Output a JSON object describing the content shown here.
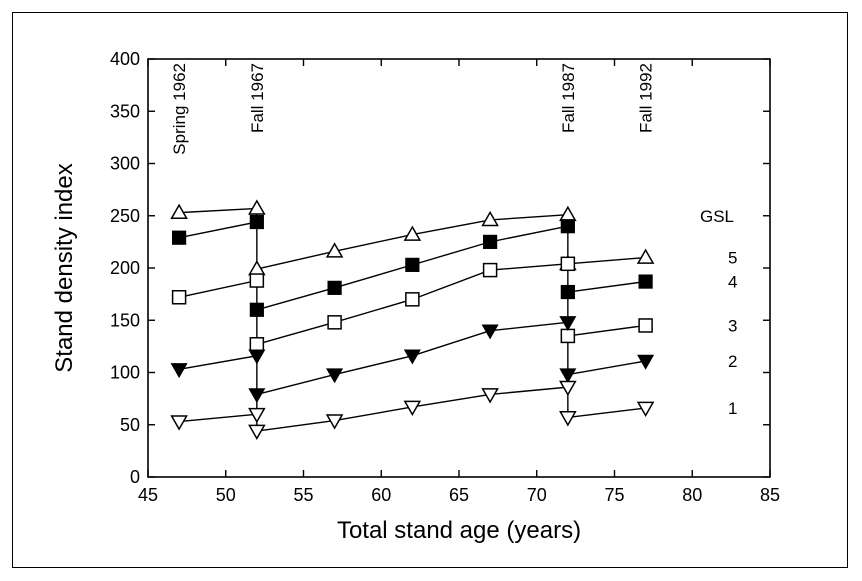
{
  "chart_data": {
    "type": "scatter",
    "xlabel": "Total stand age (years)",
    "ylabel": "Stand density index",
    "xlim": [
      45,
      85
    ],
    "ylim": [
      0,
      400
    ],
    "xticks": [
      45,
      50,
      55,
      60,
      65,
      70,
      75,
      80,
      85
    ],
    "yticks": [
      0,
      50,
      100,
      150,
      200,
      250,
      300,
      350,
      400
    ],
    "grid": false,
    "legend_title": "GSL",
    "legend_placement": "right",
    "annotations": [
      {
        "text": "Spring 1962",
        "x": 47
      },
      {
        "text": "Fall 1967",
        "x": 52
      },
      {
        "text": "Fall 1987",
        "x": 72
      },
      {
        "text": "Fall 1992",
        "x": 77
      }
    ],
    "series": [
      {
        "name": "5",
        "marker": "triangle-up-open",
        "segments": [
          [
            [
              47,
              253
            ],
            [
              52,
              257
            ]
          ],
          [
            [
              52,
              199
            ],
            [
              57,
              216
            ],
            [
              62,
              232
            ],
            [
              67,
              246
            ],
            [
              72,
              251
            ]
          ],
          [
            [
              72,
              204
            ],
            [
              77,
              210
            ]
          ]
        ],
        "label_y": 210
      },
      {
        "name": "4",
        "marker": "square-filled",
        "segments": [
          [
            [
              47,
              229
            ],
            [
              52,
              244
            ]
          ],
          [
            [
              52,
              160
            ],
            [
              57,
              181
            ],
            [
              62,
              203
            ],
            [
              67,
              225
            ],
            [
              72,
              240
            ]
          ],
          [
            [
              72,
              177
            ],
            [
              77,
              187
            ]
          ]
        ],
        "label_y": 187
      },
      {
        "name": "3",
        "marker": "square-open",
        "segments": [
          [
            [
              47,
              172
            ],
            [
              52,
              188
            ]
          ],
          [
            [
              52,
              127
            ],
            [
              57,
              148
            ],
            [
              62,
              170
            ],
            [
              67,
              198
            ],
            [
              72,
              204
            ]
          ],
          [
            [
              72,
              135
            ],
            [
              77,
              145
            ]
          ]
        ],
        "label_y": 145
      },
      {
        "name": "2",
        "marker": "triangle-down-filled",
        "segments": [
          [
            [
              47,
              103
            ],
            [
              52,
              116
            ]
          ],
          [
            [
              52,
              79
            ],
            [
              57,
              98
            ],
            [
              62,
              116
            ],
            [
              67,
              140
            ],
            [
              72,
              148
            ]
          ],
          [
            [
              72,
              98
            ],
            [
              77,
              111
            ]
          ]
        ],
        "label_y": 111
      },
      {
        "name": "1",
        "marker": "triangle-down-open",
        "segments": [
          [
            [
              47,
              53
            ],
            [
              52,
              60
            ]
          ],
          [
            [
              52,
              44
            ],
            [
              57,
              54
            ],
            [
              62,
              67
            ],
            [
              67,
              79
            ],
            [
              72,
              86
            ]
          ],
          [
            [
              72,
              57
            ],
            [
              77,
              66
            ]
          ]
        ],
        "label_y": 66
      }
    ]
  }
}
